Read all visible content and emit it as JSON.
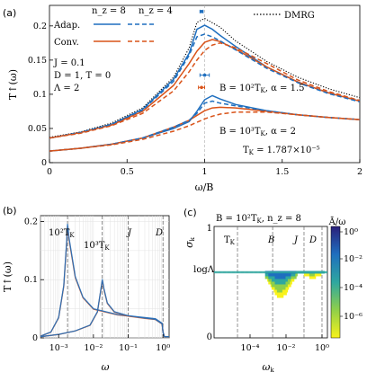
{
  "colors": {
    "adaptive": "#1f6fbf",
    "conventional": "#d95319",
    "dmrg": "#000000",
    "markerA": "#1f6fbf",
    "markerB": "#d95319"
  },
  "chart_data": [
    {
      "type": "line",
      "panel": "(a)",
      "xlabel": "ω/B",
      "ylabel": "T↑(ω)",
      "xlim": [
        0,
        2
      ],
      "ylim": [
        0,
        0.23
      ],
      "xticks": [
        "0",
        "0.5",
        "1",
        "1.5",
        "2"
      ],
      "yticks": [
        "0",
        "0.05",
        "0.1",
        "0.15",
        "0.2"
      ],
      "legend_header": [
        "n_z = 8",
        "n_z = 4"
      ],
      "legend": [
        "Adap.",
        "Conv.",
        "DMRG"
      ],
      "annotations": [
        "J = 0.1",
        "D = 1, T = 0",
        "Λ = 2",
        "B = 10²T_K, α = 1.5",
        "B = 10³T_K, α = 2",
        "T_K = 1.787×10⁻⁵"
      ],
      "series": [
        {
          "name": "DMRG",
          "style": "dotted",
          "x": [
            0,
            0.2,
            0.4,
            0.6,
            0.8,
            0.9,
            0.95,
            1.0,
            1.1,
            1.2,
            1.4,
            1.6,
            1.8,
            2.0
          ],
          "y": [
            0.037,
            0.045,
            0.058,
            0.08,
            0.125,
            0.168,
            0.205,
            0.211,
            0.198,
            0.178,
            0.148,
            0.125,
            0.108,
            0.095
          ]
        },
        {
          "name": "Adap. n_z=8 (B=10²T_K)",
          "style": "solid",
          "x": [
            0,
            0.2,
            0.4,
            0.6,
            0.8,
            0.9,
            0.95,
            1.0,
            1.05,
            1.1,
            1.2,
            1.4,
            1.6,
            1.8,
            2.0
          ],
          "y": [
            0.036,
            0.044,
            0.056,
            0.078,
            0.122,
            0.16,
            0.195,
            0.201,
            0.195,
            0.186,
            0.17,
            0.14,
            0.118,
            0.102,
            0.09
          ]
        },
        {
          "name": "Conv. n_z=8 (B=10²T_K)",
          "style": "solid",
          "x": [
            0,
            0.2,
            0.4,
            0.6,
            0.8,
            0.9,
            0.95,
            1.0,
            1.05,
            1.1,
            1.2,
            1.4,
            1.6,
            1.8,
            2.0
          ],
          "y": [
            0.036,
            0.044,
            0.055,
            0.075,
            0.113,
            0.145,
            0.163,
            0.176,
            0.18,
            0.177,
            0.166,
            0.14,
            0.118,
            0.102,
            0.09
          ]
        },
        {
          "name": "Adap. n_z=4 (B=10²T_K)",
          "style": "dashed",
          "x": [
            0,
            0.2,
            0.4,
            0.6,
            0.8,
            0.9,
            0.95,
            1.0,
            1.05,
            1.1,
            1.2,
            1.4,
            1.6,
            1.8,
            2.0
          ],
          "y": [
            0.036,
            0.044,
            0.056,
            0.077,
            0.119,
            0.157,
            0.184,
            0.188,
            0.184,
            0.178,
            0.165,
            0.138,
            0.117,
            0.101,
            0.089
          ]
        },
        {
          "name": "Conv. n_z=4 (B=10²T_K)",
          "style": "dashed",
          "x": [
            0,
            0.2,
            0.4,
            0.6,
            0.8,
            0.9,
            0.95,
            1.0,
            1.05,
            1.1,
            1.2,
            1.4,
            1.6,
            1.8,
            2.0
          ],
          "y": [
            0.036,
            0.043,
            0.054,
            0.072,
            0.105,
            0.133,
            0.15,
            0.164,
            0.172,
            0.175,
            0.168,
            0.145,
            0.121,
            0.104,
            0.091
          ]
        },
        {
          "name": "Adap. n_z=8 (B=10³T_K)",
          "style": "solid",
          "x": [
            0,
            0.2,
            0.4,
            0.6,
            0.8,
            0.9,
            0.95,
            1.0,
            1.05,
            1.1,
            1.2,
            1.4,
            1.6,
            1.8,
            2.0
          ],
          "y": [
            0.017,
            0.021,
            0.027,
            0.036,
            0.05,
            0.06,
            0.075,
            0.092,
            0.098,
            0.093,
            0.085,
            0.076,
            0.07,
            0.066,
            0.063
          ]
        },
        {
          "name": "Conv. n_z=8 (B=10³T_K)",
          "style": "solid",
          "x": [
            0,
            0.2,
            0.4,
            0.6,
            0.8,
            0.9,
            0.95,
            1.0,
            1.05,
            1.1,
            1.2,
            1.4,
            1.6,
            1.8,
            2.0
          ],
          "y": [
            0.017,
            0.021,
            0.027,
            0.036,
            0.052,
            0.062,
            0.069,
            0.076,
            0.08,
            0.081,
            0.08,
            0.075,
            0.07,
            0.066,
            0.063
          ]
        },
        {
          "name": "Adap. n_z=4 (B=10³T_K)",
          "style": "dashed",
          "x": [
            0,
            0.2,
            0.4,
            0.6,
            0.8,
            0.9,
            0.95,
            1.0,
            1.05,
            1.1,
            1.2,
            1.4,
            1.6,
            1.8,
            2.0
          ],
          "y": [
            0.017,
            0.021,
            0.027,
            0.036,
            0.052,
            0.062,
            0.072,
            0.087,
            0.09,
            0.087,
            0.083,
            0.076,
            0.07,
            0.066,
            0.063
          ]
        },
        {
          "name": "Conv. n_z=4 (B=10³T_K)",
          "style": "dashed",
          "x": [
            0,
            0.2,
            0.4,
            0.6,
            0.8,
            0.9,
            0.95,
            1.0,
            1.05,
            1.1,
            1.2,
            1.4,
            1.6,
            1.8,
            2.0
          ],
          "y": [
            0.017,
            0.021,
            0.026,
            0.034,
            0.046,
            0.054,
            0.059,
            0.064,
            0.068,
            0.071,
            0.074,
            0.074,
            0.07,
            0.066,
            0.063
          ]
        }
      ],
      "markers": [
        {
          "x": 0.98,
          "y": 0.221,
          "xerr": 0.01,
          "color": "markerA"
        },
        {
          "x": 1.0,
          "y": 0.128,
          "xerr": 0.03,
          "color": "markerA"
        },
        {
          "x": 0.98,
          "y": 0.11,
          "xerr": 0.02,
          "color": "markerB"
        }
      ]
    },
    {
      "type": "line",
      "panel": "(b)",
      "xscale": "log",
      "xlabel": "ω",
      "ylabel": "T↑(ω)",
      "xlim": [
        0.0003,
        1.5
      ],
      "ylim": [
        0,
        0.21
      ],
      "xticks": [
        "10⁻³",
        "10⁻²",
        "10⁻¹",
        "10⁰"
      ],
      "yticks": [
        "0",
        "0.1",
        "0.2"
      ],
      "vlines": [
        {
          "x": 0.0018,
          "label": "10²T_K"
        },
        {
          "x": 0.018,
          "label": "10³T_K"
        },
        {
          "x": 0.1,
          "label": "J"
        },
        {
          "x": 1.0,
          "label": "D"
        }
      ],
      "series": [
        {
          "name": "B=10²T_K",
          "x": [
            0.0003,
            0.0006,
            0.001,
            0.0014,
            0.0017,
            0.0018,
            0.002,
            0.003,
            0.005,
            0.01,
            0.05,
            0.2,
            0.6,
            0.95,
            1.0,
            1.1,
            1.5
          ],
          "y": [
            0.003,
            0.01,
            0.035,
            0.09,
            0.165,
            0.195,
            0.17,
            0.105,
            0.07,
            0.05,
            0.04,
            0.036,
            0.033,
            0.025,
            0.01,
            0.002,
            0.002
          ]
        },
        {
          "name": "B=10³T_K",
          "x": [
            0.0003,
            0.001,
            0.003,
            0.008,
            0.013,
            0.016,
            0.018,
            0.02,
            0.025,
            0.04,
            0.1,
            0.3,
            0.6,
            0.95,
            1.0,
            1.1,
            1.5
          ],
          "y": [
            0.002,
            0.006,
            0.012,
            0.022,
            0.045,
            0.08,
            0.1,
            0.085,
            0.06,
            0.045,
            0.038,
            0.034,
            0.032,
            0.024,
            0.01,
            0.002,
            0.002
          ]
        }
      ]
    },
    {
      "type": "heatmap",
      "panel": "(c)",
      "title": "B = 10²T_K, n_z = 8",
      "xscale": "log",
      "xlabel": "ω_k",
      "ylabel": "σ_k",
      "xlim": [
        1e-06,
        2
      ],
      "ylim": [
        -0.3,
        1.0
      ],
      "xticks": [
        "10⁻⁴",
        "10⁻²",
        "10⁰"
      ],
      "yticks": [
        "0",
        "logΛ",
        "1"
      ],
      "vlines": [
        {
          "x": 2e-05,
          "label": "T_K"
        },
        {
          "x": 0.0018,
          "label": "B"
        },
        {
          "x": 0.1,
          "label": "J"
        },
        {
          "x": 1.0,
          "label": "D"
        }
      ],
      "colorbar": {
        "label": "Ā/ω",
        "ticks": [
          "10⁰",
          "10⁻²",
          "10⁻⁴",
          "10⁻⁶"
        ],
        "range": [
          1e-07,
          1
        ]
      }
    }
  ],
  "text": {
    "panel_a": "(a)",
    "panel_b": "(b)",
    "panel_c": "(c)",
    "hdr_nz8": "n_z = 8",
    "hdr_nz4": "n_z = 4",
    "leg_adap": "Adap.",
    "leg_conv": "Conv.",
    "leg_dmrg": "DMRG",
    "ann_J": "J = 0.1",
    "ann_D": "D = 1, T = 0",
    "ann_L": "Λ = 2",
    "ann_B2": "B = 10²T",
    "ann_B2_sub": "K",
    "ann_B2_tail": ", α = 1.5",
    "ann_B3": "B = 10³T",
    "ann_B3_sub": "K",
    "ann_B3_tail": ", α = 2",
    "ann_TK": "T",
    "ann_TK_sub": "K",
    "ann_TK_tail": " = 1.787×10⁻⁵",
    "a_xlabel": "ω/B",
    "a_ylabel": "T↑(ω)",
    "b_xlabel": "ω",
    "b_ylabel": "T↑(ω)",
    "b_v1": "10²T",
    "b_v1_sub": "K",
    "b_v2": "10³T",
    "b_v2_sub": "K",
    "b_v3": "J",
    "b_v4": "D",
    "c_title": "B = 10²T",
    "c_title_sub": "K",
    "c_title_tail": ", n_z = 8",
    "c_xlabel": "ω",
    "c_xlabel_sub": "k",
    "c_ylabel": "σ",
    "c_ylabel_sub": "k",
    "c_v1": "T",
    "c_v1_sub": "K",
    "c_v2": "B",
    "c_v3": "J",
    "c_v4": "D",
    "c_cb_label": "Ā/ω",
    "c_ylog": "logΛ",
    "c_y0": "0",
    "c_y1": "1"
  }
}
